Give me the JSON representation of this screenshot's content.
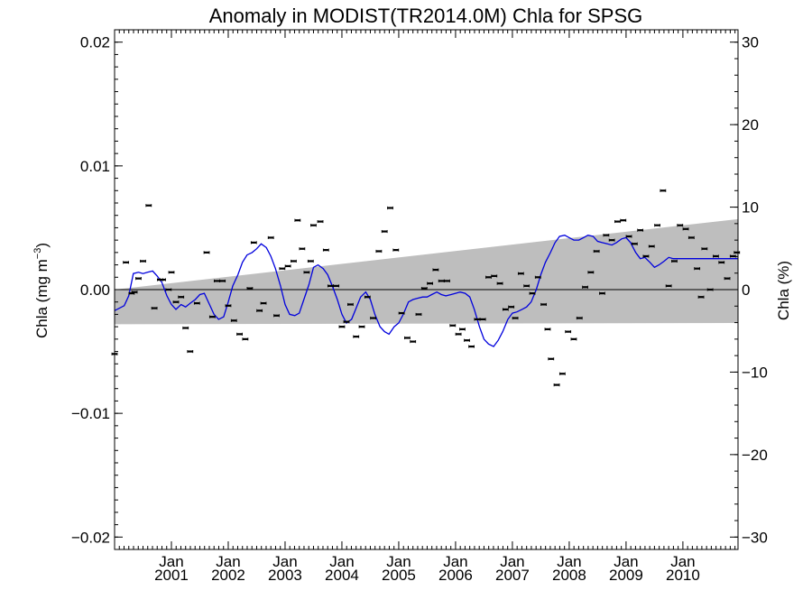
{
  "chart_data": {
    "type": "line",
    "title": "Anomaly in MODIST(TR2014.0M) Chla for SPSG",
    "ylabel_left": "Chla (mg m",
    "ylabel_left_sup": "−3",
    "ylabel_left_close": ")",
    "ylabel_right": "Chla (%)",
    "ylim_left": [
      -0.021,
      0.021
    ],
    "ylim_right": [
      -31.5,
      31.5
    ],
    "xlim": [
      2000.0,
      2010.97
    ],
    "left_ticks": [
      {
        "v": 0.02,
        "label": "0.02"
      },
      {
        "v": 0.01,
        "label": "0.01"
      },
      {
        "v": 0.0,
        "label": "0.00"
      },
      {
        "v": -0.01,
        "label": "−0.01"
      },
      {
        "v": -0.02,
        "label": "−0.02"
      }
    ],
    "right_ticks": [
      {
        "v": 30,
        "label": "30"
      },
      {
        "v": 20,
        "label": "20"
      },
      {
        "v": 10,
        "label": "10"
      },
      {
        "v": 0,
        "label": "0"
      },
      {
        "v": -10,
        "label": "−10"
      },
      {
        "v": -20,
        "label": "−20"
      },
      {
        "v": -30,
        "label": "−30"
      }
    ],
    "x_ticks": [
      {
        "v": 2001.0,
        "month": "Jan",
        "year": "2001"
      },
      {
        "v": 2002.0,
        "month": "Jan",
        "year": "2002"
      },
      {
        "v": 2003.0,
        "month": "Jan",
        "year": "2003"
      },
      {
        "v": 2004.0,
        "month": "Jan",
        "year": "2004"
      },
      {
        "v": 2005.0,
        "month": "Jan",
        "year": "2005"
      },
      {
        "v": 2006.0,
        "month": "Jan",
        "year": "2006"
      },
      {
        "v": 2007.0,
        "month": "Jan",
        "year": "2007"
      },
      {
        "v": 2008.0,
        "month": "Jan",
        "year": "2008"
      },
      {
        "v": 2009.0,
        "month": "Jan",
        "year": "2009"
      },
      {
        "v": 2010.0,
        "month": "Jan",
        "year": "2010"
      }
    ],
    "trend_band": {
      "x": [
        2000.0,
        2010.97
      ],
      "upper": [
        0.0,
        0.0057
      ],
      "lower": [
        -0.0028,
        -0.0027
      ]
    },
    "zero_line": 0.0,
    "series": [
      {
        "style": "line",
        "x": [
          2000.0,
          2000.17,
          2000.25,
          2000.33,
          2000.42,
          2000.5,
          2000.58,
          2000.67,
          2000.75,
          2000.83,
          2000.92,
          2001.0,
          2001.08,
          2001.17,
          2001.25,
          2001.33,
          2001.42,
          2001.5,
          2001.58,
          2001.67,
          2001.75,
          2001.83,
          2001.92,
          2002.0,
          2002.08,
          2002.17,
          2002.25,
          2002.33,
          2002.42,
          2002.5,
          2002.58,
          2002.67,
          2002.75,
          2002.83,
          2002.92,
          2003.0,
          2003.08,
          2003.17,
          2003.25,
          2003.33,
          2003.42,
          2003.5,
          2003.58,
          2003.67,
          2003.75,
          2003.83,
          2003.92,
          2004.0,
          2004.08,
          2004.17,
          2004.25,
          2004.33,
          2004.42,
          2004.5,
          2004.58,
          2004.67,
          2004.75,
          2004.83,
          2004.92,
          2005.0,
          2005.08,
          2005.17,
          2005.25,
          2005.33,
          2005.42,
          2005.5,
          2005.58,
          2005.67,
          2005.75,
          2005.83,
          2005.92,
          2006.0,
          2006.08,
          2006.17,
          2006.25,
          2006.33,
          2006.42,
          2006.5,
          2006.58,
          2006.67,
          2006.75,
          2006.83,
          2006.92,
          2007.0,
          2007.08,
          2007.17,
          2007.25,
          2007.33,
          2007.42,
          2007.5,
          2007.58,
          2007.67,
          2007.75,
          2007.83,
          2007.92,
          2008.0,
          2008.08,
          2008.17,
          2008.25,
          2008.33,
          2008.42,
          2008.5,
          2008.58,
          2008.67,
          2008.75,
          2008.83,
          2008.92,
          2009.0,
          2009.08,
          2009.17,
          2009.25,
          2009.33,
          2009.42,
          2009.5,
          2009.58,
          2009.67,
          2009.75,
          2009.83,
          2009.92,
          2010.0,
          2010.08,
          2010.17,
          2010.25,
          2010.33,
          2010.42,
          2010.5,
          2010.58,
          2010.67,
          2010.75,
          2010.83,
          2010.92,
          2010.97
        ],
        "y": [
          -0.0017,
          -0.0013,
          -0.0005,
          0.0013,
          0.0014,
          0.0013,
          0.0014,
          0.0015,
          0.0011,
          0.0006,
          -0.0005,
          -0.0012,
          -0.0016,
          -0.0012,
          -0.0014,
          -0.0011,
          -0.0008,
          -0.0004,
          -0.0003,
          -0.0012,
          -0.002,
          -0.0024,
          -0.0022,
          -0.001,
          0.0003,
          0.0012,
          0.0022,
          0.0028,
          0.003,
          0.0033,
          0.0037,
          0.0034,
          0.0027,
          0.0017,
          0.0003,
          -0.0012,
          -0.002,
          -0.0021,
          -0.0019,
          -0.0008,
          0.0004,
          0.0018,
          0.002,
          0.0017,
          0.0012,
          0.0003,
          -0.0008,
          -0.002,
          -0.0027,
          -0.0024,
          -0.0015,
          -0.0006,
          -0.0002,
          -0.0008,
          -0.002,
          -0.003,
          -0.0034,
          -0.0036,
          -0.003,
          -0.0027,
          -0.002,
          -0.001,
          -0.0008,
          -0.0007,
          -0.0006,
          -0.0006,
          -0.0004,
          -0.0002,
          -0.0004,
          -0.0005,
          -0.0004,
          -0.0003,
          -0.0002,
          -0.0003,
          -0.0006,
          -0.0016,
          -0.003,
          -0.004,
          -0.0044,
          -0.0046,
          -0.0041,
          -0.0034,
          -0.0024,
          -0.0019,
          -0.0018,
          -0.0016,
          -0.0014,
          -0.001,
          0.0,
          0.0012,
          0.0022,
          0.003,
          0.0038,
          0.0043,
          0.0044,
          0.0042,
          0.004,
          0.004,
          0.0042,
          0.0044,
          0.0043,
          0.0039,
          0.0038,
          0.0037,
          0.0036,
          0.0038,
          0.0041,
          0.0042,
          0.0038,
          0.003,
          0.0025,
          0.0026,
          0.0022,
          0.0018,
          0.002,
          0.0023,
          0.0026,
          0.0025,
          0.0025,
          0.0025,
          0.0025,
          0.0025,
          0.0025,
          0.0025,
          0.0025,
          0.0025,
          0.0025,
          0.0025,
          0.0025,
          0.0025,
          0.0025,
          0.0025
        ],
        "color": "#0000dd"
      },
      {
        "style": "points",
        "x": [
          2000.0,
          2000.2,
          2000.3,
          2000.35,
          2000.42,
          2000.5,
          2000.6,
          2000.7,
          2000.8,
          2000.85,
          2000.95,
          2001.0,
          2001.08,
          2001.17,
          2001.25,
          2001.33,
          2001.45,
          2001.62,
          2001.72,
          2001.8,
          2001.9,
          2002.0,
          2002.1,
          2002.2,
          2002.3,
          2002.38,
          2002.45,
          2002.55,
          2002.62,
          2002.75,
          2002.85,
          2002.95,
          2003.05,
          2003.15,
          2003.22,
          2003.3,
          2003.38,
          2003.45,
          2003.5,
          2003.62,
          2003.72,
          2003.8,
          2003.9,
          2004.0,
          2004.08,
          2004.15,
          2004.25,
          2004.35,
          2004.45,
          2004.55,
          2004.65,
          2004.75,
          2004.85,
          2004.95,
          2005.05,
          2005.15,
          2005.25,
          2005.35,
          2005.45,
          2005.55,
          2005.65,
          2005.75,
          2005.85,
          2005.95,
          2006.05,
          2006.12,
          2006.2,
          2006.28,
          2006.38,
          2006.48,
          2006.58,
          2006.68,
          2006.78,
          2006.88,
          2006.98,
          2007.05,
          2007.15,
          2007.25,
          2007.35,
          2007.45,
          2007.55,
          2007.62,
          2007.68,
          2007.78,
          2007.88,
          2007.98,
          2008.08,
          2008.18,
          2008.28,
          2008.38,
          2008.48,
          2008.58,
          2008.65,
          2008.75,
          2008.85,
          2008.95,
          2009.05,
          2009.15,
          2009.25,
          2009.35,
          2009.45,
          2009.55,
          2009.65,
          2009.75,
          2009.85,
          2009.95,
          2010.05,
          2010.15,
          2010.25,
          2010.32,
          2010.38,
          2010.48,
          2010.58,
          2010.68,
          2010.78,
          2010.88,
          2010.95
        ],
        "y": [
          -0.0052,
          0.0022,
          -0.0003,
          -0.0002,
          0.0009,
          0.0023,
          0.0068,
          -0.0015,
          0.0008,
          0.0008,
          0.0,
          0.0014,
          -0.001,
          -0.0006,
          -0.0031,
          -0.005,
          -0.0011,
          0.003,
          -0.0022,
          0.0007,
          0.0007,
          -0.0013,
          -0.0025,
          -0.0036,
          -0.004,
          0.0001,
          0.0038,
          -0.0017,
          -0.0011,
          0.0042,
          -0.0021,
          0.0017,
          0.0019,
          0.0023,
          0.0056,
          0.0033,
          0.0014,
          0.0023,
          0.0052,
          0.0055,
          0.0032,
          0.0003,
          0.0003,
          -0.003,
          -0.0026,
          -0.0012,
          -0.0038,
          -0.003,
          -0.0006,
          -0.0023,
          0.0031,
          0.0047,
          0.0066,
          0.0032,
          -0.0019,
          -0.0039,
          -0.0042,
          -0.002,
          0.0001,
          0.0005,
          0.0016,
          0.0007,
          0.0007,
          -0.0029,
          -0.0036,
          -0.0032,
          -0.0041,
          -0.0046,
          -0.0024,
          -0.0024,
          0.001,
          0.0011,
          0.0005,
          -0.0016,
          -0.0014,
          -0.0023,
          0.0013,
          0.0003,
          -0.0003,
          0.001,
          -0.0012,
          -0.0032,
          -0.0056,
          -0.0077,
          -0.0068,
          -0.0034,
          -0.004,
          -0.0023,
          0.0002,
          0.0014,
          0.0031,
          -0.0003,
          0.0044,
          0.004,
          0.0055,
          0.0056,
          0.0043,
          0.0037,
          0.0048,
          0.0027,
          0.0035,
          0.0052,
          0.008,
          0.0003,
          0.0023,
          0.0052,
          0.0049,
          0.0042,
          0.0017,
          -0.0006,
          0.0033,
          0.0,
          0.0027,
          0.0022,
          0.0009,
          0.0027,
          0.003
        ],
        "color": "#000000"
      }
    ],
    "band_color": "#bebebe",
    "line_color": "#0000dd",
    "point_color": "#000000"
  }
}
